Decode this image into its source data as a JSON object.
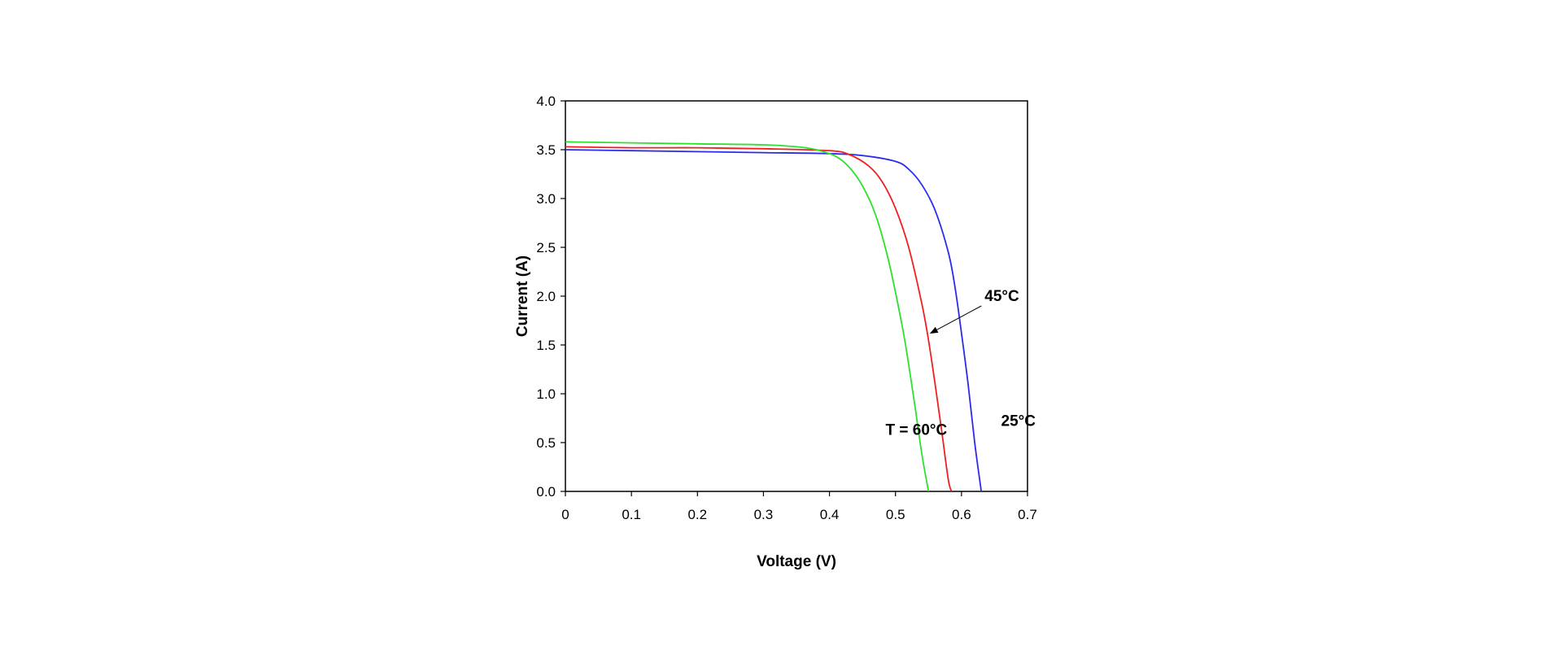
{
  "chart_data": {
    "type": "line",
    "xlabel": "Voltage (V)",
    "ylabel": "Current (A)",
    "xlim": [
      0,
      0.7
    ],
    "ylim": [
      0,
      4.0
    ],
    "x_ticks": [
      "0",
      "0.1",
      "0.2",
      "0.3",
      "0.4",
      "0.5",
      "0.6",
      "0.7"
    ],
    "y_ticks": [
      "0.0",
      "0.5",
      "1.0",
      "1.5",
      "2.0",
      "2.5",
      "3.0",
      "3.5",
      "4.0"
    ],
    "grid": false,
    "series": [
      {
        "color": "#2b2bf0",
        "x": [
          0,
          0.1,
          0.2,
          0.3,
          0.4,
          0.45,
          0.5,
          0.52,
          0.54,
          0.56,
          0.58,
          0.59,
          0.6,
          0.61,
          0.62,
          0.63
        ],
        "y": [
          3.5,
          3.49,
          3.48,
          3.47,
          3.46,
          3.44,
          3.38,
          3.3,
          3.14,
          2.88,
          2.45,
          2.1,
          1.62,
          1.1,
          0.5,
          0.0
        ]
      },
      {
        "color": "#f02020",
        "x": [
          0,
          0.1,
          0.2,
          0.3,
          0.4,
          0.43,
          0.46,
          0.48,
          0.5,
          0.52,
          0.54,
          0.55,
          0.56,
          0.57,
          0.58,
          0.585
        ],
        "y": [
          3.53,
          3.52,
          3.52,
          3.51,
          3.49,
          3.45,
          3.33,
          3.17,
          2.9,
          2.5,
          1.92,
          1.55,
          1.1,
          0.62,
          0.12,
          0.0
        ]
      },
      {
        "color": "#2ee02e",
        "x": [
          0,
          0.1,
          0.2,
          0.3,
          0.35,
          0.38,
          0.41,
          0.43,
          0.45,
          0.47,
          0.49,
          0.51,
          0.52,
          0.53,
          0.54,
          0.55
        ],
        "y": [
          3.58,
          3.57,
          3.56,
          3.55,
          3.53,
          3.5,
          3.43,
          3.32,
          3.13,
          2.83,
          2.35,
          1.7,
          1.3,
          0.85,
          0.38,
          0.0
        ]
      }
    ],
    "annotations": [
      {
        "text": "T = 60°C",
        "x": 0.485,
        "y": 0.58
      },
      {
        "text": "45°C",
        "x": 0.635,
        "y": 1.95,
        "arrow_to": [
          0.553,
          1.62
        ]
      },
      {
        "text": "25°C",
        "x": 0.66,
        "y": 0.67
      }
    ]
  }
}
